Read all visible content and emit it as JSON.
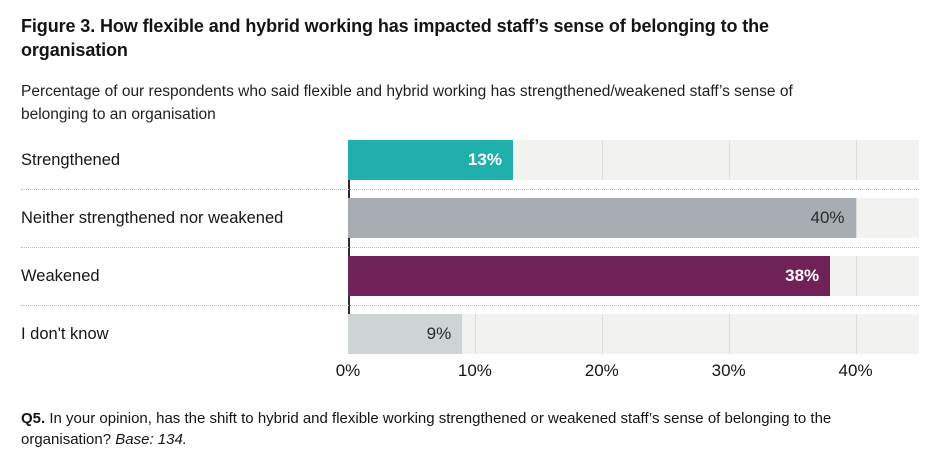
{
  "figure": {
    "footnote": {
      "label": "Q5.",
      "text": "In your opinion, has the shift to hybrid and flexible working strengthened or weakened staff’s sense of belonging to the organisation?",
      "base": "Base: 134."
    }
  },
  "chart_data": {
    "type": "bar",
    "orientation": "horizontal",
    "title": "Figure 3. How flexible and hybrid working has impacted staff’s sense of belonging to the organisation",
    "subtitle": "Percentage of our respondents who said flexible and hybrid working has strengthened/weakened staff’s sense of belonging to an organisation",
    "categories": [
      "Strengthened",
      "Neither strengthened nor weakened",
      "Weakened",
      "I don't know"
    ],
    "values": [
      13,
      40,
      38,
      9
    ],
    "value_suffix": "%",
    "xlabel": "",
    "ylabel": "",
    "xlim": [
      0,
      45
    ],
    "x_ticks": [
      0,
      10,
      20,
      30,
      40
    ],
    "x_tick_suffix": "%",
    "grid": "vertical",
    "legend": "none",
    "bar_colors": [
      "#20b0ac",
      "#a6acb2",
      "#6f2158",
      "#ced3d4"
    ],
    "value_label_colors": [
      "#ffffff",
      "#2b2b2b",
      "#ffffff",
      "#2b2b2b"
    ],
    "value_label_weights": [
      "bold",
      "normal",
      "bold",
      "normal"
    ],
    "plot_bg": "#f2f2f0",
    "gridline_color": "#deddd8",
    "axis_line_color": "#2d2d2d"
  }
}
